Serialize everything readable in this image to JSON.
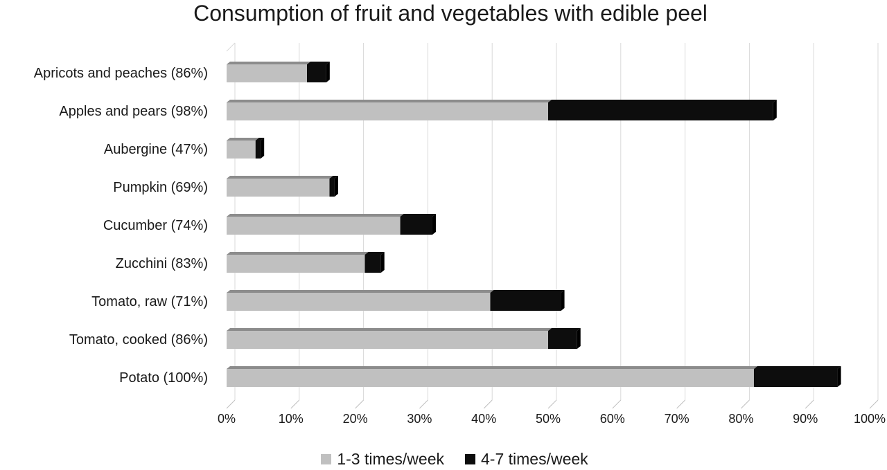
{
  "colors": {
    "series_1": "#c0c0c0",
    "series_1_top": "#8c8c8c",
    "series_2": "#0d0d0d",
    "grid": "#d9d9d9",
    "axis": "#bfbfbf",
    "text": "#1a1a1a"
  },
  "chart_data": {
    "type": "bar",
    "orientation": "horizontal",
    "stacked": true,
    "title": "Consumption of fruit and vegetables with edible peel",
    "xlabel": "",
    "ylabel": "",
    "xlim": [
      0,
      100
    ],
    "x_ticks": [
      "0%",
      "10%",
      "20%",
      "30%",
      "40%",
      "50%",
      "60%",
      "70%",
      "80%",
      "90%",
      "100%"
    ],
    "categories": [
      "Apricots and peaches (86%)",
      "Apples and pears (98%)",
      "Aubergine (47%)",
      "Pumpkin (69%)",
      "Cucumber (74%)",
      "Zucchini (83%)",
      "Tomato, raw (71%)",
      "Tomato, cooked (86%)",
      "Potato (100%)"
    ],
    "series": [
      {
        "name": "1-3 times/week",
        "values": [
          12.5,
          50,
          4.5,
          16,
          27,
          21.5,
          41,
          50,
          82
        ]
      },
      {
        "name": "4-7 times/week",
        "values": [
          3,
          35,
          0.8,
          0.8,
          5,
          2.5,
          11,
          4.5,
          13
        ]
      }
    ],
    "grid": true,
    "legend_position": "bottom"
  }
}
